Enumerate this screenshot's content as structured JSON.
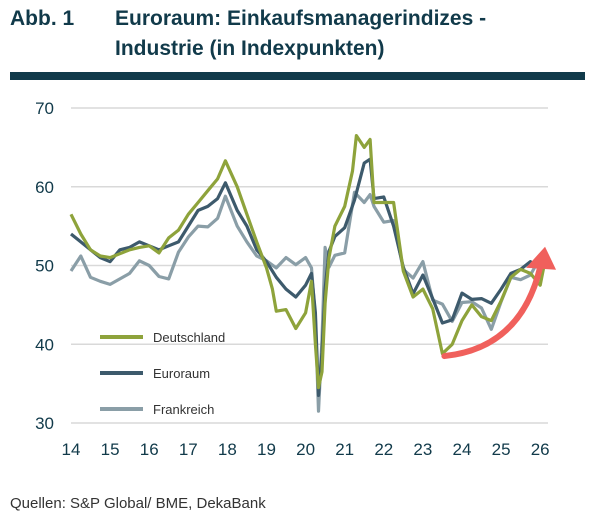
{
  "header": {
    "figure_label": "Abb. 1",
    "title_line1": "Euroraum: Einkaufsmanagerindizes -",
    "title_line2": "Industrie (in Indexpunkten)"
  },
  "footer": {
    "source": "Quellen: S&P Global/ BME, DekaBank"
  },
  "colors": {
    "title": "#113a4a",
    "grid": "#d9d9d9",
    "axis_text": "#113a4a",
    "arrow": "#f0605c"
  },
  "chart_data": {
    "type": "line",
    "title": "Euroraum: Einkaufsmanagerindizes - Industrie (in Indexpunkten)",
    "xlabel": "",
    "ylabel": "",
    "xlim": [
      2014.0,
      2026.2
    ],
    "ylim": [
      30,
      70
    ],
    "yticks": [
      30,
      40,
      50,
      60,
      70
    ],
    "xticks": [
      14,
      15,
      16,
      17,
      18,
      19,
      20,
      21,
      22,
      23,
      24,
      25,
      26
    ],
    "grid": true,
    "legend": "inside left",
    "series": [
      {
        "name": "Deutschland",
        "color": "#8ea33b",
        "points": [
          [
            2014.0,
            56.5
          ],
          [
            2014.25,
            54
          ],
          [
            2014.5,
            52
          ],
          [
            2014.75,
            51.2
          ],
          [
            2015.0,
            51
          ],
          [
            2015.25,
            51.5
          ],
          [
            2015.5,
            52
          ],
          [
            2015.75,
            52.3
          ],
          [
            2016.0,
            52.5
          ],
          [
            2016.25,
            51.6
          ],
          [
            2016.5,
            53.5
          ],
          [
            2016.75,
            54.5
          ],
          [
            2017.0,
            56.5
          ],
          [
            2017.25,
            58
          ],
          [
            2017.5,
            59.5
          ],
          [
            2017.75,
            61
          ],
          [
            2017.95,
            63.3
          ],
          [
            2018.25,
            60
          ],
          [
            2018.5,
            56.5
          ],
          [
            2018.75,
            53
          ],
          [
            2019.0,
            49.7
          ],
          [
            2019.15,
            47
          ],
          [
            2019.25,
            44.2
          ],
          [
            2019.5,
            44.4
          ],
          [
            2019.75,
            42
          ],
          [
            2020.0,
            44
          ],
          [
            2020.15,
            48
          ],
          [
            2020.25,
            40
          ],
          [
            2020.33,
            34.5
          ],
          [
            2020.42,
            36.5
          ],
          [
            2020.5,
            45.2
          ],
          [
            2020.6,
            51
          ],
          [
            2020.75,
            55
          ],
          [
            2021.0,
            57.5
          ],
          [
            2021.2,
            62
          ],
          [
            2021.3,
            66.5
          ],
          [
            2021.5,
            65
          ],
          [
            2021.65,
            66
          ],
          [
            2021.75,
            58
          ],
          [
            2022.0,
            58
          ],
          [
            2022.25,
            58
          ],
          [
            2022.5,
            49.3
          ],
          [
            2022.75,
            46
          ],
          [
            2023.0,
            47
          ],
          [
            2023.25,
            44.5
          ],
          [
            2023.5,
            38.8
          ],
          [
            2023.75,
            40
          ],
          [
            2024.0,
            43
          ],
          [
            2024.25,
            45
          ],
          [
            2024.5,
            43.5
          ],
          [
            2024.75,
            43
          ],
          [
            2025.0,
            45.5
          ],
          [
            2025.25,
            48.5
          ],
          [
            2025.5,
            49.5
          ],
          [
            2025.75,
            49
          ],
          [
            2026.0,
            47.5
          ],
          [
            2026.1,
            50
          ]
        ]
      },
      {
        "name": "Euroraum",
        "color": "#3d5a6c",
        "points": [
          [
            2014.0,
            54
          ],
          [
            2014.25,
            53
          ],
          [
            2014.5,
            52
          ],
          [
            2014.75,
            51
          ],
          [
            2015.0,
            50.5
          ],
          [
            2015.25,
            52
          ],
          [
            2015.5,
            52.3
          ],
          [
            2015.75,
            53
          ],
          [
            2016.0,
            52.5
          ],
          [
            2016.25,
            52
          ],
          [
            2016.5,
            52.5
          ],
          [
            2016.75,
            53
          ],
          [
            2017.0,
            55
          ],
          [
            2017.25,
            57
          ],
          [
            2017.5,
            57.5
          ],
          [
            2017.75,
            58.5
          ],
          [
            2017.95,
            60.5
          ],
          [
            2018.25,
            57
          ],
          [
            2018.5,
            55
          ],
          [
            2018.75,
            52
          ],
          [
            2019.0,
            50.5
          ],
          [
            2019.25,
            48.5
          ],
          [
            2019.5,
            47
          ],
          [
            2019.75,
            46
          ],
          [
            2020.0,
            47.5
          ],
          [
            2020.15,
            49
          ],
          [
            2020.25,
            44
          ],
          [
            2020.33,
            33.5
          ],
          [
            2020.42,
            39
          ],
          [
            2020.5,
            47
          ],
          [
            2020.6,
            51.8
          ],
          [
            2020.75,
            53.7
          ],
          [
            2021.0,
            54.8
          ],
          [
            2021.25,
            58.3
          ],
          [
            2021.5,
            63
          ],
          [
            2021.65,
            63.5
          ],
          [
            2021.75,
            58.5
          ],
          [
            2022.0,
            58.7
          ],
          [
            2022.25,
            55
          ],
          [
            2022.5,
            49.8
          ],
          [
            2022.75,
            46.4
          ],
          [
            2023.0,
            48.8
          ],
          [
            2023.25,
            45.8
          ],
          [
            2023.5,
            42.7
          ],
          [
            2023.75,
            43.1
          ],
          [
            2024.0,
            46.5
          ],
          [
            2024.25,
            45.7
          ],
          [
            2024.5,
            45.8
          ],
          [
            2024.75,
            45.2
          ],
          [
            2025.0,
            47
          ],
          [
            2025.25,
            49
          ],
          [
            2025.5,
            49.5
          ],
          [
            2025.75,
            50.5
          ],
          [
            2026.0,
            49.5
          ],
          [
            2026.1,
            50.5
          ]
        ]
      },
      {
        "name": "Frankreich",
        "color": "#8a9ea7",
        "points": [
          [
            2014.0,
            49.3
          ],
          [
            2014.25,
            51.2
          ],
          [
            2014.5,
            48.5
          ],
          [
            2014.75,
            48
          ],
          [
            2015.0,
            47.6
          ],
          [
            2015.25,
            48.3
          ],
          [
            2015.5,
            49
          ],
          [
            2015.75,
            50.6
          ],
          [
            2016.0,
            50
          ],
          [
            2016.25,
            48.6
          ],
          [
            2016.5,
            48.3
          ],
          [
            2016.75,
            51.7
          ],
          [
            2017.0,
            53.6
          ],
          [
            2017.25,
            55
          ],
          [
            2017.5,
            54.9
          ],
          [
            2017.75,
            56
          ],
          [
            2017.95,
            58.8
          ],
          [
            2018.25,
            55
          ],
          [
            2018.5,
            53
          ],
          [
            2018.75,
            51.2
          ],
          [
            2019.0,
            50.6
          ],
          [
            2019.25,
            49.7
          ],
          [
            2019.5,
            51
          ],
          [
            2019.75,
            50.1
          ],
          [
            2020.0,
            51
          ],
          [
            2020.15,
            49.7
          ],
          [
            2020.25,
            43.2
          ],
          [
            2020.33,
            31.5
          ],
          [
            2020.42,
            40.6
          ],
          [
            2020.5,
            52.3
          ],
          [
            2020.6,
            49.8
          ],
          [
            2020.75,
            51.3
          ],
          [
            2021.0,
            51.6
          ],
          [
            2021.25,
            59.3
          ],
          [
            2021.5,
            58
          ],
          [
            2021.65,
            59
          ],
          [
            2021.75,
            57.5
          ],
          [
            2022.0,
            55.5
          ],
          [
            2022.25,
            55.7
          ],
          [
            2022.5,
            49.5
          ],
          [
            2022.75,
            48.4
          ],
          [
            2023.0,
            50.5
          ],
          [
            2023.25,
            45.6
          ],
          [
            2023.5,
            45.1
          ],
          [
            2023.75,
            42.9
          ],
          [
            2024.0,
            45.3
          ],
          [
            2024.25,
            45.4
          ],
          [
            2024.5,
            44.6
          ],
          [
            2024.75,
            41.9
          ],
          [
            2025.0,
            45.4
          ],
          [
            2025.25,
            48.5
          ],
          [
            2025.5,
            48.2
          ],
          [
            2025.75,
            48.8
          ],
          [
            2026.0,
            51
          ],
          [
            2026.1,
            50.5
          ]
        ]
      }
    ],
    "annotation": {
      "type": "arrow",
      "meaning": "upward trend",
      "color": "#f0605c",
      "from": [
        2023.55,
        38.5
      ],
      "to": [
        2026.15,
        51.5
      ]
    }
  }
}
